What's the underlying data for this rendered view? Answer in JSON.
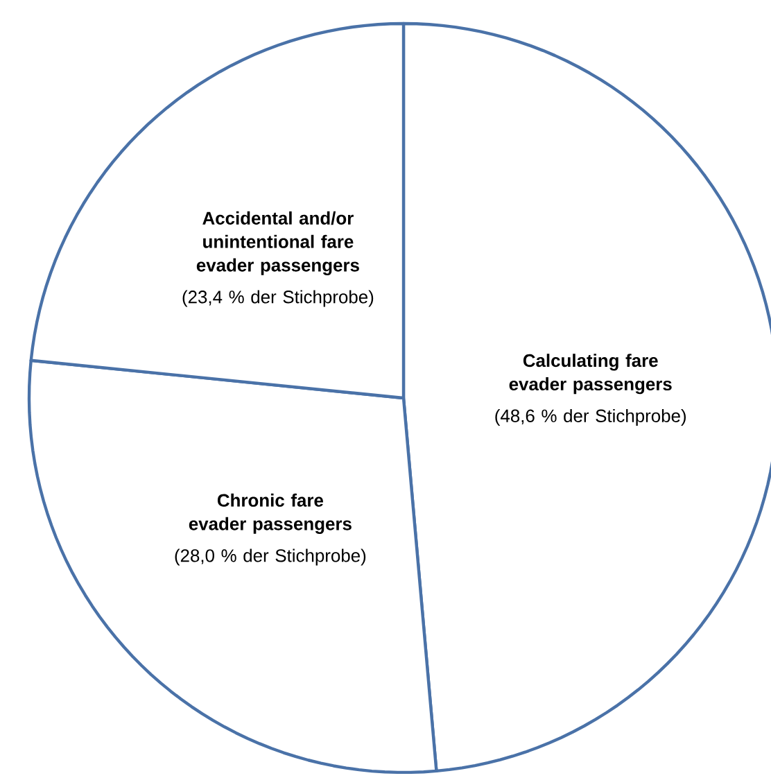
{
  "chart_data": {
    "type": "pie",
    "categories": [
      "Calculating fare evader passengers",
      "Chronic fare evader passengers",
      "Accidental and/or unintentional fare evader passengers"
    ],
    "values": [
      48.6,
      28.0,
      23.4
    ],
    "value_labels": [
      "(48,6 % der Stichprobe)",
      "(28,0 % der Stichprobe)",
      "(23,4 % der Stichprobe)"
    ],
    "colors": [
      "#ffffff",
      "#ffffff",
      "#ffffff"
    ]
  }
}
